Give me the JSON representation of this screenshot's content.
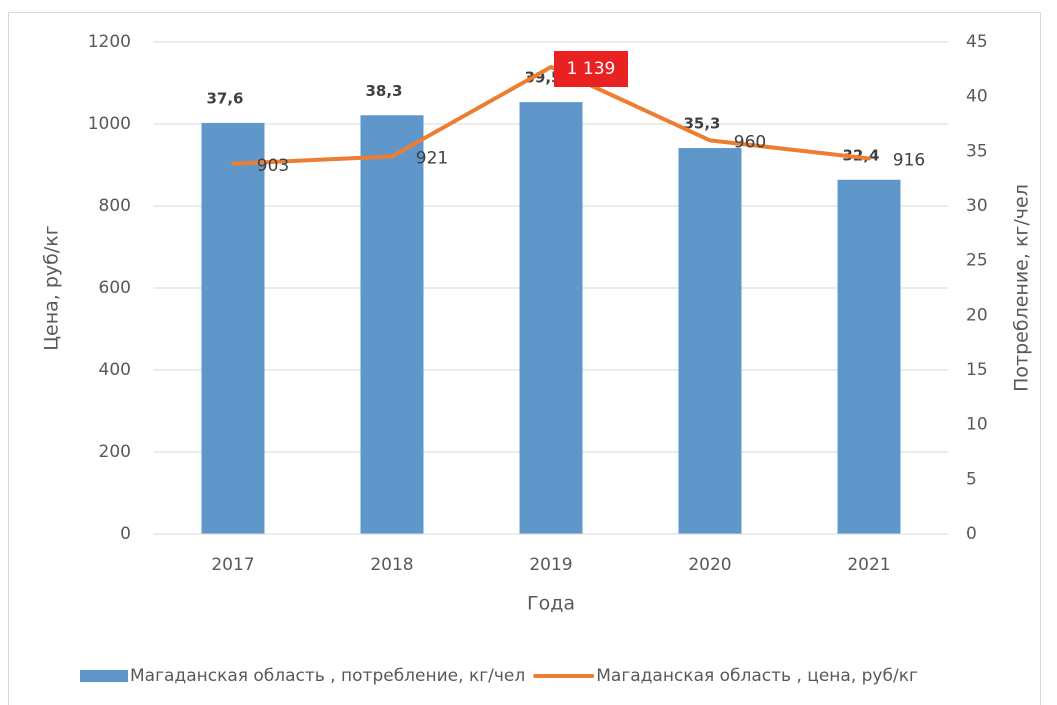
{
  "chart_data": {
    "type": "bar_line",
    "x_label": "Года",
    "y_label": "Цена, руб/кг",
    "y2_label": "Потребление, кг/чел",
    "categories": [
      "2017",
      "2018",
      "2019",
      "2020",
      "2021"
    ],
    "series": [
      {
        "name": "Магаданская область , потребление, кг/чел",
        "type": "bar",
        "axis": "y2",
        "color": "#5f97cb",
        "values": [
          37.6,
          38.3,
          39.5,
          35.3,
          32.4
        ],
        "value_labels": [
          "37,6",
          "38,3",
          "39,5",
          "35,3",
          "32,4"
        ]
      },
      {
        "name": "Магаданская область , цена, руб/кг",
        "type": "line",
        "axis": "y",
        "color": "#ed7d31",
        "values": [
          903,
          921,
          1139,
          960,
          916
        ],
        "value_labels": [
          "903",
          "921",
          "1 139",
          "960",
          "916"
        ],
        "label_highlight": {
          "index": 2,
          "color": "#e82121"
        }
      }
    ],
    "ylim": [
      0,
      1200
    ],
    "yticks": [
      0,
      200,
      400,
      600,
      800,
      1000,
      1200
    ],
    "y2lim": [
      0,
      45
    ],
    "y2ticks": [
      0,
      5,
      10,
      15,
      20,
      25,
      30,
      35,
      40,
      45
    ],
    "grid": true
  }
}
